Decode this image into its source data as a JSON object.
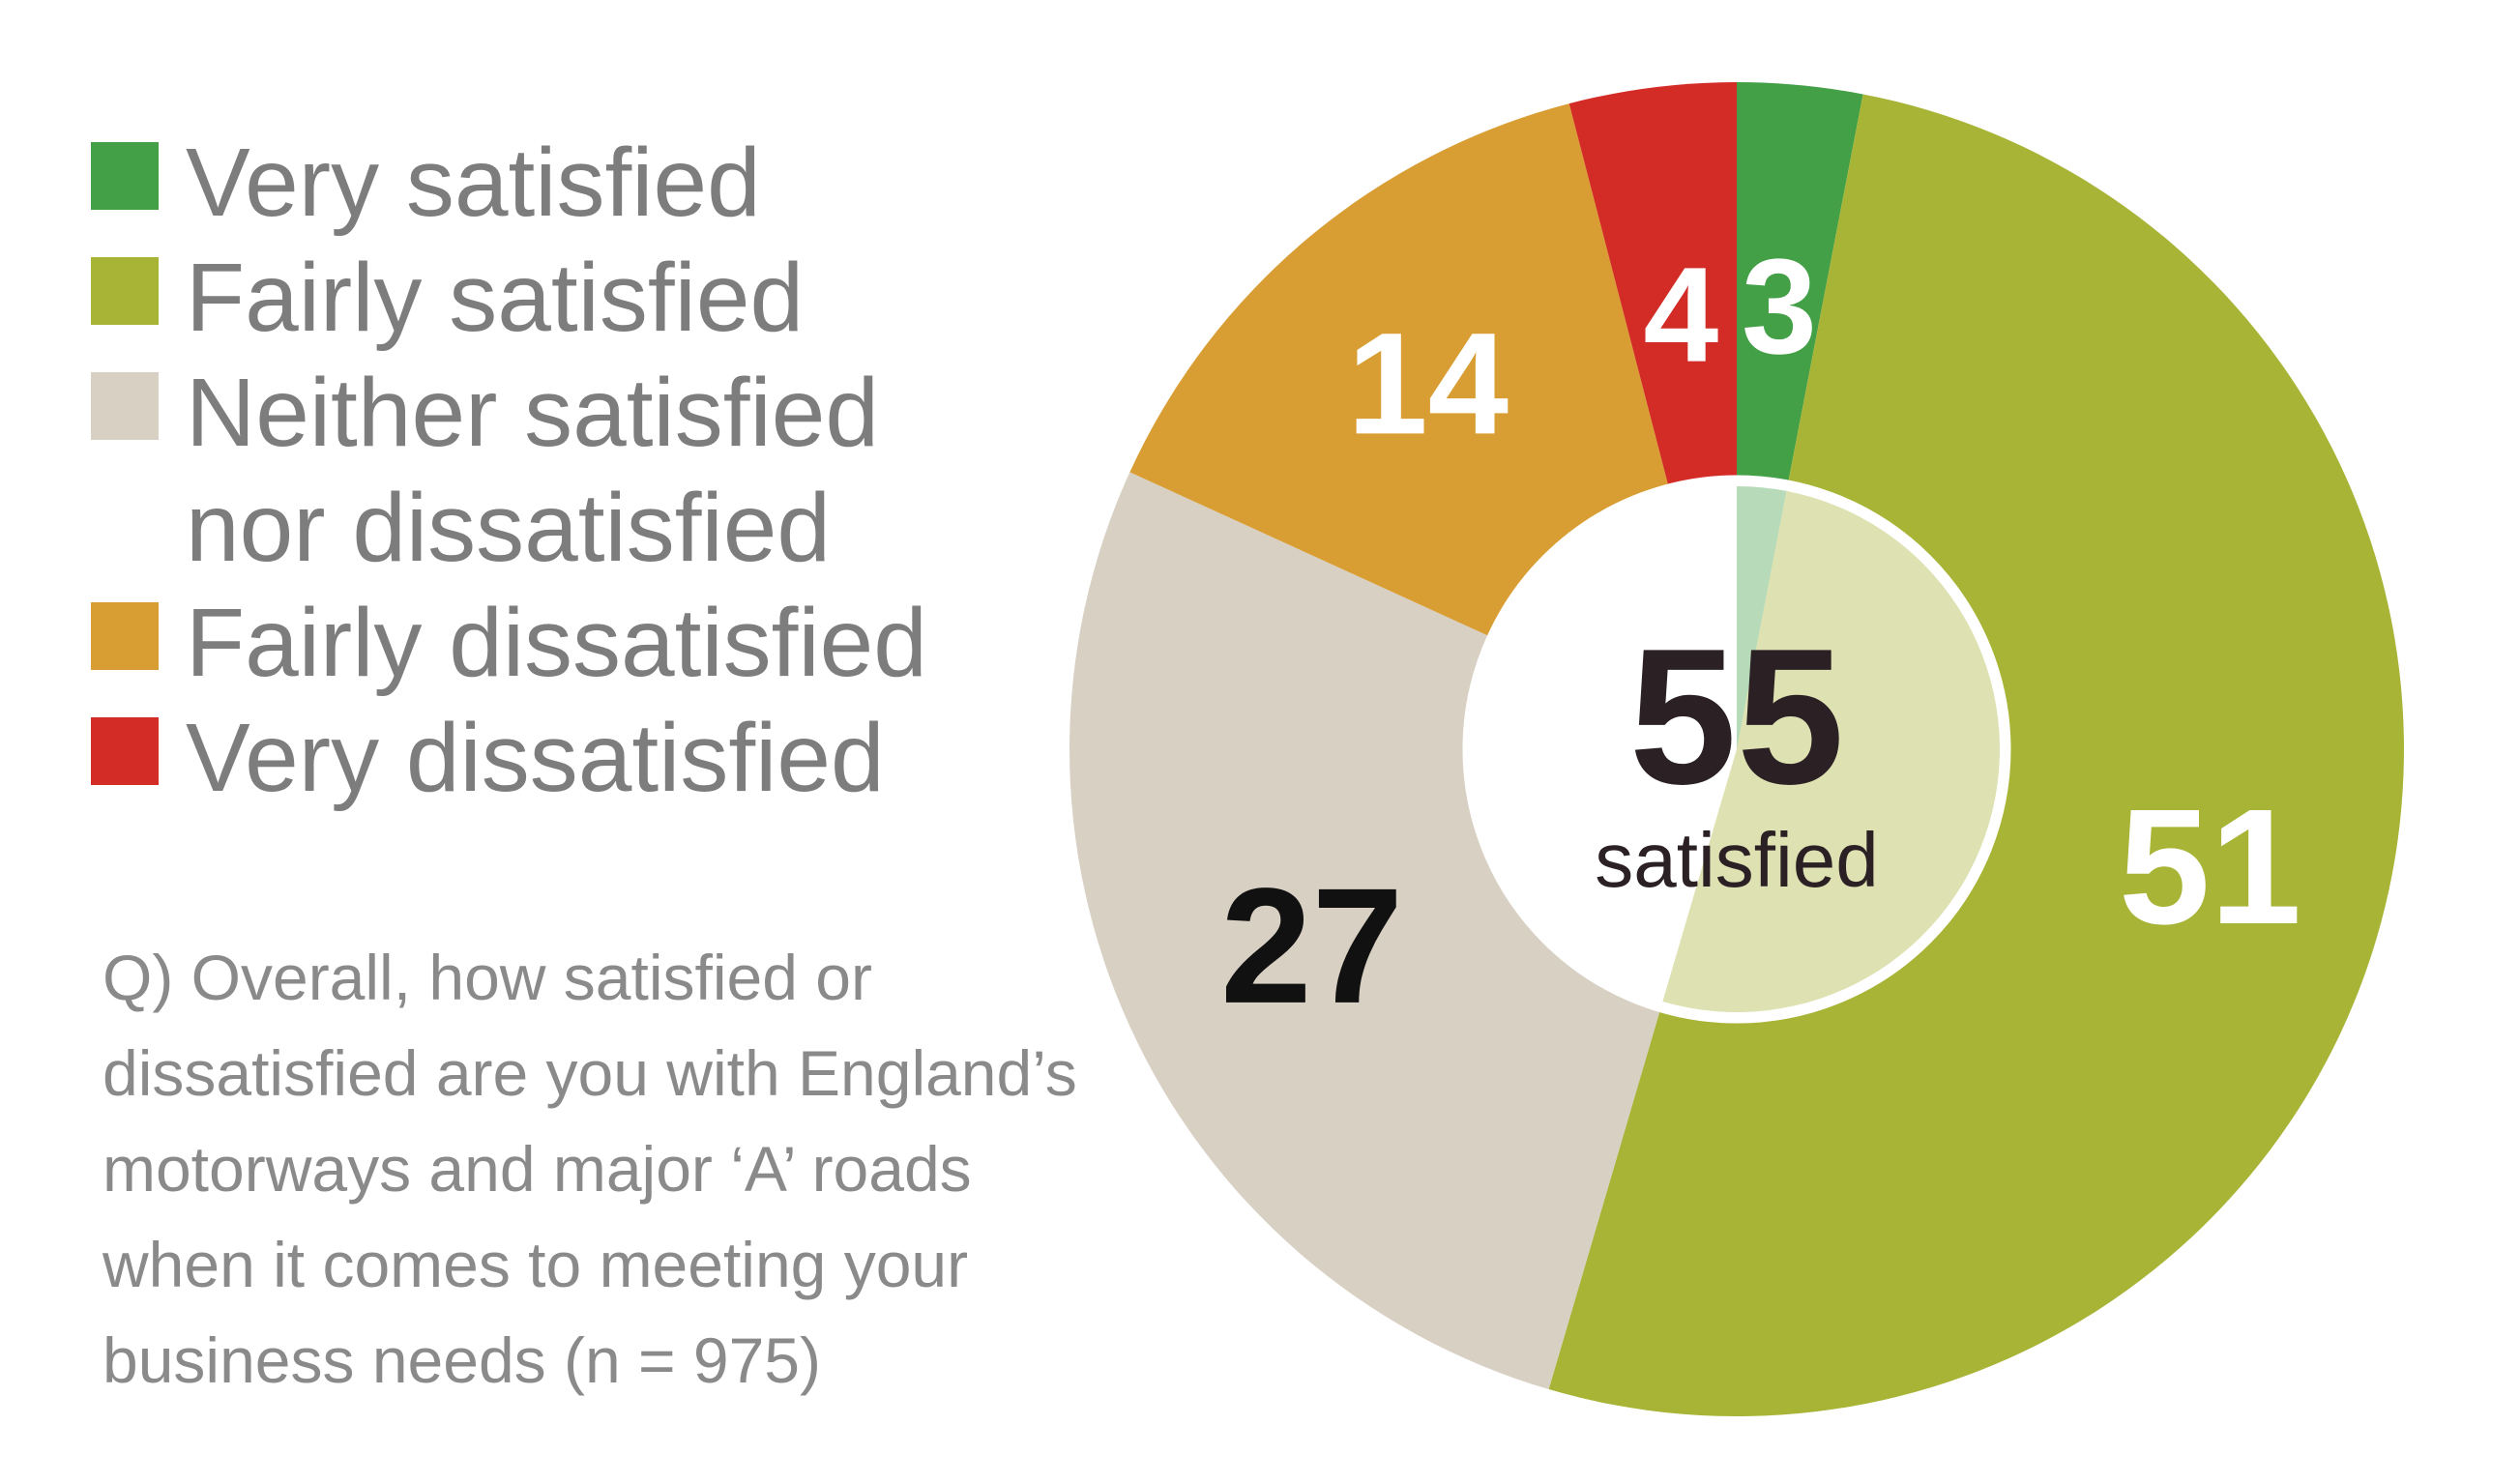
{
  "chart_data": {
    "type": "pie",
    "categories": [
      "Very satisfied",
      "Fairly satisfied",
      "Neither satisfied nor dissatisfied",
      "Fairly dissatisfied",
      "Very dissatisfied"
    ],
    "values": [
      3,
      51,
      27,
      14,
      4
    ],
    "value_labels": [
      "3",
      "51",
      "27",
      "14",
      "4"
    ],
    "colors": [
      "#43a047",
      "#a8b435",
      "#d8d0c3",
      "#d99e33",
      "#d32c26"
    ],
    "label_colors": [
      "#ffffff",
      "#ffffff",
      "#111111",
      "#ffffff",
      "#ffffff"
    ],
    "legend": {
      "placement": "left",
      "items": [
        {
          "label": "Very satisfied",
          "color": "#43a047"
        },
        {
          "label": "Fairly satisfied",
          "color": "#a8b435"
        },
        {
          "label": "Neither satisfied",
          "label_line2": "nor dissatisfied",
          "color": "#d8d0c3"
        },
        {
          "label": "Fairly dissatisfied",
          "color": "#d99e33"
        },
        {
          "label": "Very dissatisfied",
          "color": "#d32c26"
        }
      ]
    },
    "center": {
      "value": "55",
      "label": "satisfied",
      "satisfied_share": 55
    },
    "question_lines": [
      "Q) Overall, how satisfied or",
      "dissatisfied are you with England’s",
      "motorways and major ‘A’ roads",
      "when it comes to meeting your",
      "business needs (n = 975)"
    ]
  }
}
